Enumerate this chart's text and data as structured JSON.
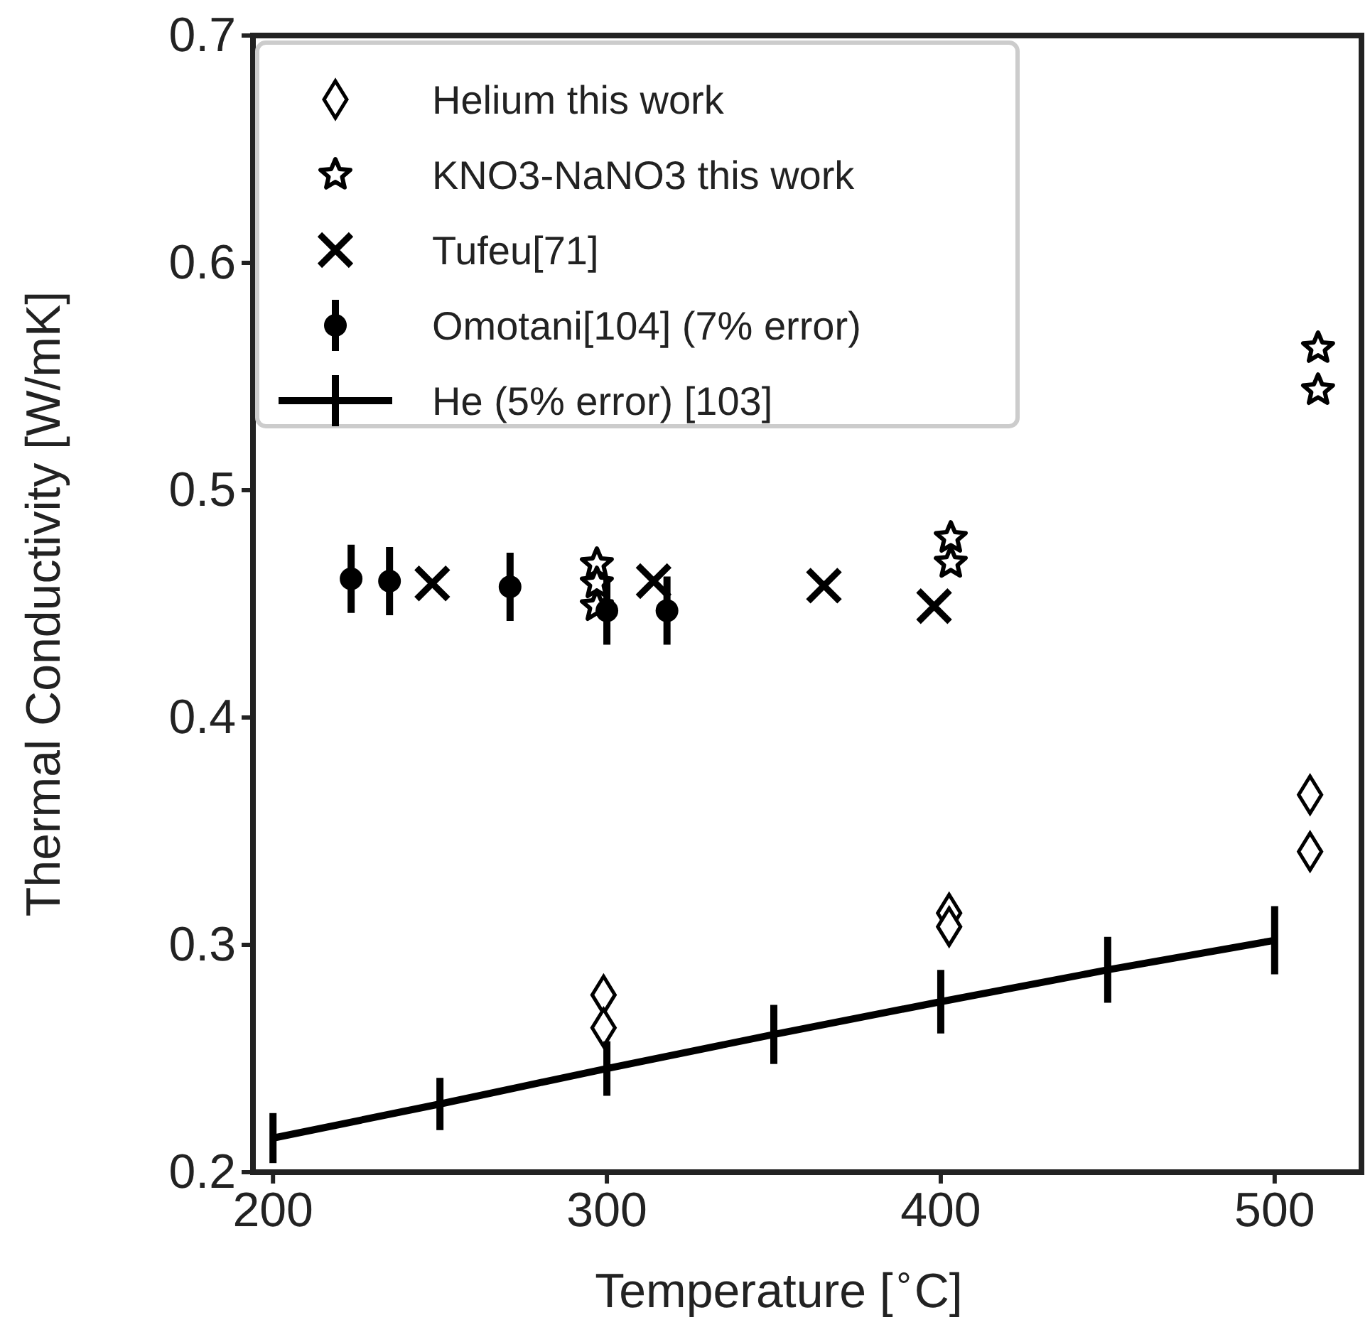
{
  "chart_data": {
    "type": "scatter",
    "xlabel": "Temperature [$^{∘}$C]",
    "ylabel": "Thermal Conductivity [W/mK]",
    "xlim": [
      194,
      526
    ],
    "xticks": [
      200,
      300,
      400,
      500
    ],
    "ylim": [
      0.2,
      0.7
    ],
    "yticks": [
      0.2,
      0.3,
      0.4,
      0.5,
      0.6,
      0.7
    ],
    "grid": false,
    "legend": "top left",
    "series": [
      {
        "name": "Helium this work",
        "color": "#000000",
        "marker": "diamond",
        "x": [
          299,
          299,
          402.5,
          402.5,
          510.6,
          510.6
        ],
        "values": [
          0.278,
          0.2635,
          0.314,
          0.308,
          0.366,
          0.341
        ]
      },
      {
        "name": "KNO3-NaNO3 this work",
        "color": "#000000",
        "marker": "star",
        "x": [
          297,
          297,
          297,
          403,
          403,
          513,
          513
        ],
        "values": [
          0.4675,
          0.459,
          0.449,
          0.479,
          0.468,
          0.5625,
          0.544
        ]
      },
      {
        "name": "Tufeu[71]",
        "color": "#000000",
        "marker": "cross",
        "x": [
          247.7,
          314,
          365,
          398
        ],
        "values": [
          0.459,
          0.46,
          0.458,
          0.449
        ]
      },
      {
        "name": "Omotani[104] (7% error)",
        "color": "#000000",
        "marker": "circle",
        "x": [
          223.4,
          234.9,
          271,
          300,
          318
        ],
        "values": [
          0.461,
          0.46,
          0.4575,
          0.447,
          0.447
        ],
        "errors": [
          0.015,
          0.015,
          0.015,
          0.015,
          0.015
        ]
      },
      {
        "name": "He (5% error) [103]",
        "type": "line",
        "color": "#000000",
        "marker": "none",
        "line_style": "solid",
        "x": [
          200,
          250,
          300,
          350,
          400,
          450,
          500
        ],
        "values": [
          0.215,
          0.23,
          0.2456,
          0.2606,
          0.275,
          0.289,
          0.302
        ],
        "errors": [
          0.011,
          0.0115,
          0.012,
          0.013,
          0.014,
          0.0145,
          0.015
        ]
      }
    ]
  }
}
